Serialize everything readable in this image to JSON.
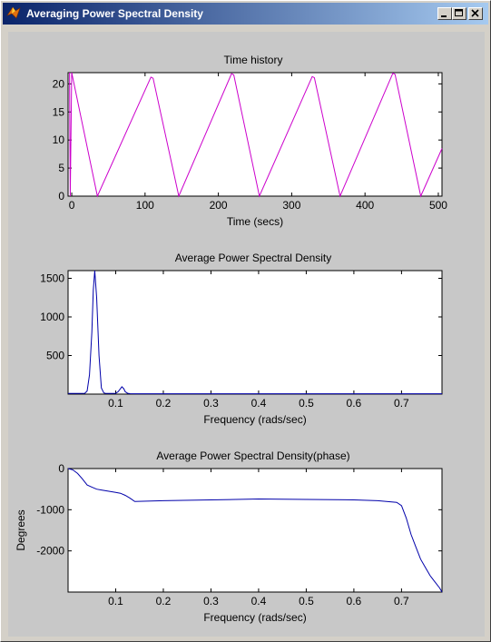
{
  "window": {
    "title": "Averaging Power Spectral Density",
    "controls": {
      "minimize": "minimize",
      "maximize": "maximize",
      "close": "close"
    }
  },
  "colors": {
    "time_line": "#cc00cc",
    "psd_line": "#0000aa",
    "figure_bg": "#c8c8c8"
  },
  "chart_data": [
    {
      "type": "line",
      "title": "Time history",
      "xlabel": "Time (secs)",
      "ylabel": "",
      "xlim": [
        -5,
        505
      ],
      "ylim": [
        0,
        22
      ],
      "xticks": [
        0,
        100,
        200,
        300,
        400,
        500
      ],
      "yticks": [
        0,
        5,
        10,
        15,
        20
      ],
      "series": [
        {
          "color": "#cc00cc",
          "x": [
            -3,
            -2,
            0,
            35,
            108,
            111,
            146,
            218,
            221,
            256,
            328,
            331,
            366,
            438,
            441,
            476,
            506
          ],
          "y": [
            22,
            0,
            22,
            0,
            21.2,
            21,
            0,
            21.8,
            21.6,
            0,
            21.3,
            21.1,
            0,
            21.9,
            21.7,
            0,
            8.5
          ]
        }
      ]
    },
    {
      "type": "line",
      "title": "Average Power Spectral Density",
      "xlabel": "Frequency (rads/sec)",
      "ylabel": "",
      "xlim": [
        0,
        0.785
      ],
      "ylim": [
        0,
        1600
      ],
      "xticks": [
        0.1,
        0.2,
        0.3,
        0.4,
        0.5,
        0.6,
        0.7
      ],
      "yticks": [
        500,
        1000,
        1500
      ],
      "series": [
        {
          "color": "#0000aa",
          "x": [
            0,
            0.02,
            0.035,
            0.04,
            0.045,
            0.05,
            0.053,
            0.056,
            0.06,
            0.065,
            0.07,
            0.075,
            0.08,
            0.09,
            0.1,
            0.105,
            0.11,
            0.113,
            0.117,
            0.12,
            0.125,
            0.13,
            0.14,
            0.16,
            0.2,
            0.4,
            0.6,
            0.785
          ],
          "y": [
            8,
            8,
            10,
            40,
            250,
            800,
            1350,
            1600,
            1250,
            500,
            80,
            15,
            8,
            8,
            10,
            30,
            70,
            95,
            70,
            30,
            10,
            6,
            5,
            5,
            5,
            5,
            5,
            5
          ]
        }
      ]
    },
    {
      "type": "line",
      "title": "Average Power Spectral Density(phase)",
      "xlabel": "Frequency (rads/sec)",
      "ylabel": "Degrees",
      "xlim": [
        0,
        0.785
      ],
      "ylim": [
        -3000,
        0
      ],
      "xticks": [
        0.1,
        0.2,
        0.3,
        0.4,
        0.5,
        0.6,
        0.7
      ],
      "yticks": [
        0,
        -1000,
        -2000
      ],
      "series": [
        {
          "color": "#0000aa",
          "x": [
            0,
            0.01,
            0.02,
            0.03,
            0.04,
            0.05,
            0.06,
            0.07,
            0.08,
            0.09,
            0.1,
            0.11,
            0.12,
            0.13,
            0.14,
            0.2,
            0.3,
            0.4,
            0.5,
            0.6,
            0.65,
            0.69,
            0.7,
            0.71,
            0.72,
            0.73,
            0.74,
            0.75,
            0.76,
            0.77,
            0.78,
            0.785
          ],
          "y": [
            0,
            -30,
            -120,
            -250,
            -400,
            -450,
            -500,
            -520,
            -540,
            -560,
            -580,
            -600,
            -650,
            -720,
            -800,
            -780,
            -760,
            -740,
            -750,
            -760,
            -780,
            -820,
            -900,
            -1200,
            -1600,
            -1900,
            -2200,
            -2400,
            -2600,
            -2750,
            -2900,
            -3000
          ]
        }
      ]
    }
  ]
}
